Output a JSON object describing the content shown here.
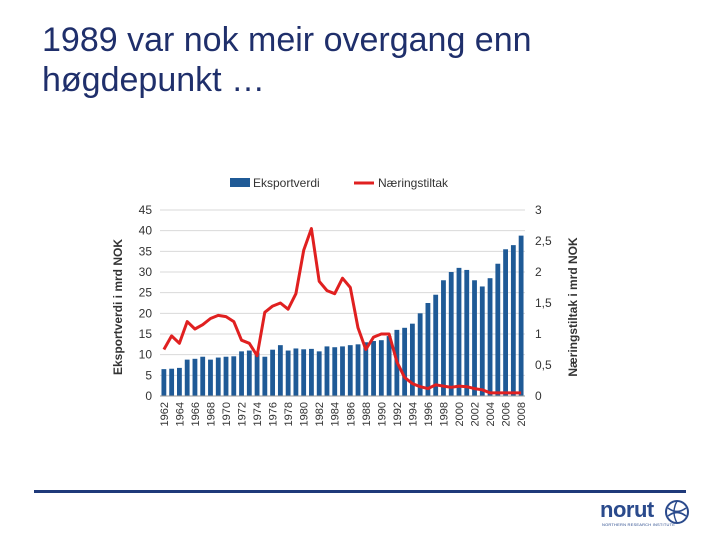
{
  "slide": {
    "title_line1": "1989 var nok meir overgang enn",
    "title_line2": "høgdepunkt …"
  },
  "logo": {
    "name": "norut",
    "subtitle": "NORTHERN RESEARCH INSTITUTE",
    "accent_color": "#2a4a8c"
  },
  "chart_data": {
    "type": "bar",
    "categories": [
      "1962",
      "1963",
      "1964",
      "1965",
      "1966",
      "1967",
      "1968",
      "1969",
      "1970",
      "1971",
      "1972",
      "1973",
      "1974",
      "1975",
      "1976",
      "1977",
      "1978",
      "1979",
      "1980",
      "1981",
      "1982",
      "1983",
      "1984",
      "1985",
      "1986",
      "1987",
      "1988",
      "1989",
      "1990",
      "1991",
      "1992",
      "1993",
      "1994",
      "1995",
      "1996",
      "1997",
      "1998",
      "1999",
      "2000",
      "2001",
      "2002",
      "2003",
      "2004",
      "2005",
      "2006",
      "2007",
      "2008"
    ],
    "x_tick_labels": [
      "1962",
      "1964",
      "1966",
      "1968",
      "1970",
      "1972",
      "1974",
      "1976",
      "1978",
      "1980",
      "1982",
      "1984",
      "1986",
      "1988",
      "1990",
      "1992",
      "1994",
      "1996",
      "1998",
      "2000",
      "2002",
      "2004",
      "2006",
      "2008"
    ],
    "series": [
      {
        "name": "Eksportverdi",
        "type": "bar",
        "axis": "left",
        "color": "#1f5a96",
        "values": [
          6.5,
          6.6,
          6.8,
          8.8,
          9.0,
          9.5,
          8.8,
          9.3,
          9.5,
          9.6,
          10.8,
          11.0,
          10.5,
          9.5,
          11.2,
          12.3,
          11.0,
          11.5,
          11.3,
          11.4,
          10.8,
          12.0,
          11.8,
          12.0,
          12.3,
          12.5,
          13.0,
          13.3,
          13.5,
          14.5,
          16.0,
          16.5,
          17.5,
          20.0,
          22.5,
          24.5,
          28.0,
          30.0,
          31.0,
          30.5,
          28.0,
          26.5,
          28.5,
          32.0,
          35.5,
          36.5,
          38.8
        ]
      },
      {
        "name": "Næringstiltak",
        "type": "line",
        "axis": "right",
        "color": "#e02020",
        "values": [
          0.75,
          0.97,
          0.85,
          1.2,
          1.08,
          1.15,
          1.25,
          1.3,
          1.28,
          1.2,
          0.9,
          0.85,
          0.65,
          1.35,
          1.45,
          1.5,
          1.4,
          1.65,
          2.35,
          2.7,
          1.85,
          1.7,
          1.65,
          1.9,
          1.75,
          1.1,
          0.75,
          0.95,
          1.0,
          1.0,
          0.55,
          0.3,
          0.2,
          0.15,
          0.12,
          0.18,
          0.16,
          0.14,
          0.16,
          0.15,
          0.12,
          0.1,
          0.05,
          0.05,
          0.05,
          0.05,
          0.05
        ]
      }
    ],
    "ylabel": "Eksportverdi i mrd NOK",
    "ylabel_right": "Næringstiltak i mrd NOK",
    "ylim": [
      0,
      45
    ],
    "ylim_right": [
      0,
      3
    ],
    "y_ticks": [
      "0",
      "5",
      "10",
      "15",
      "20",
      "25",
      "30",
      "35",
      "40",
      "45"
    ],
    "y_ticks_right": [
      "0",
      "0,5",
      "1",
      "1,5",
      "2",
      "2,5",
      "3"
    ],
    "grid": true,
    "legend_position": "top"
  }
}
